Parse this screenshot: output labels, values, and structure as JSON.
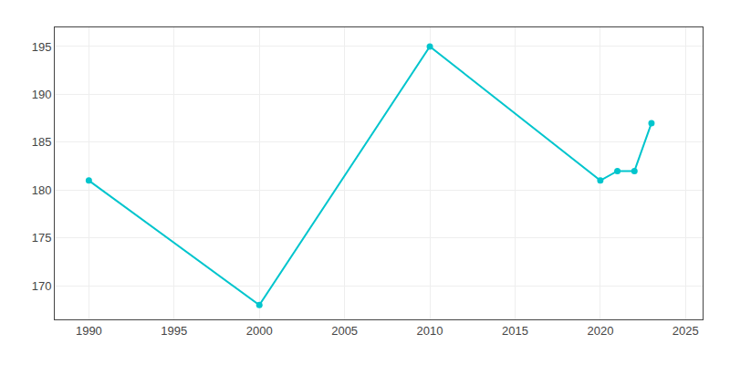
{
  "chart_data": {
    "type": "line",
    "x": [
      1990,
      2000,
      2010,
      2020,
      2021,
      2022,
      2023
    ],
    "values": [
      181,
      168,
      195,
      181,
      182,
      182,
      187
    ],
    "color": "#00C5CD",
    "marker": "circle",
    "xlim": [
      1988,
      2026
    ],
    "ylim": [
      166.5,
      197
    ],
    "xticks": [
      1990,
      1995,
      2000,
      2005,
      2010,
      2015,
      2020,
      2025
    ],
    "yticks": [
      170,
      175,
      180,
      185,
      190,
      195
    ],
    "grid": true
  }
}
